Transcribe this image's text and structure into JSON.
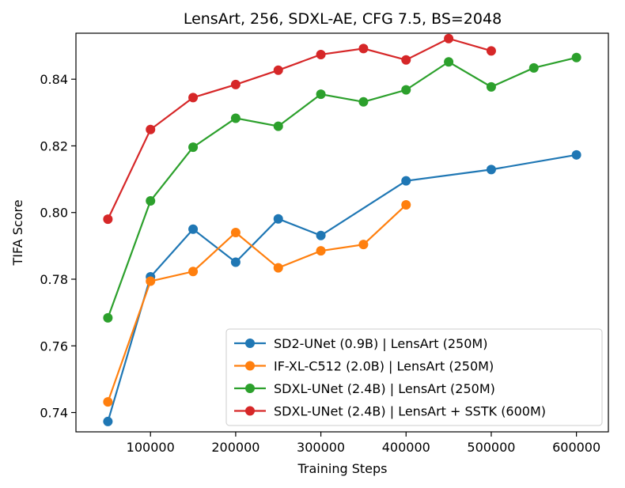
{
  "chart_data": {
    "type": "line",
    "title": "LensArt, 256, SDXL-AE, CFG 7.5, BS=2048",
    "xlabel": "Training Steps",
    "ylabel": "TIFA Score",
    "xlim": [
      12500,
      637500
    ],
    "ylim": [
      0.7342,
      0.8538
    ],
    "xticks": [
      100000,
      200000,
      300000,
      400000,
      500000,
      600000
    ],
    "xtick_labels": [
      "100000",
      "200000",
      "300000",
      "400000",
      "500000",
      "600000"
    ],
    "yticks": [
      0.74,
      0.76,
      0.78,
      0.8,
      0.82,
      0.84
    ],
    "ytick_labels": [
      "0.74",
      "0.76",
      "0.78",
      "0.80",
      "0.82",
      "0.84"
    ],
    "grid": false,
    "legend_position": "lower-right",
    "series": [
      {
        "name": "SD2-UNet (0.9B) | LensArt (250M)",
        "color": "#1f77b4",
        "x": [
          50000,
          100000,
          150000,
          200000,
          250000,
          300000,
          400000,
          500000,
          600000
        ],
        "y": [
          0.7373,
          0.7807,
          0.795,
          0.7851,
          0.7981,
          0.7931,
          0.8095,
          0.8129,
          0.8173
        ]
      },
      {
        "name": "IF-XL-C512 (2.0B) | LensArt (250M)",
        "color": "#ff7f0e",
        "x": [
          50000,
          100000,
          150000,
          200000,
          250000,
          300000,
          350000,
          400000
        ],
        "y": [
          0.7432,
          0.7794,
          0.7823,
          0.794,
          0.7834,
          0.7885,
          0.7904,
          0.8023
        ]
      },
      {
        "name": "SDXL-UNet (2.4B) | LensArt (250M)",
        "color": "#2ca02c",
        "x": [
          50000,
          100000,
          150000,
          200000,
          250000,
          300000,
          350000,
          400000,
          450000,
          500000,
          550000,
          600000
        ],
        "y": [
          0.7684,
          0.8035,
          0.8196,
          0.8283,
          0.8259,
          0.8355,
          0.8332,
          0.8368,
          0.8452,
          0.8377,
          0.8434,
          0.8465
        ]
      },
      {
        "name": "SDXL-UNet (2.4B) | LensArt + SSTK (600M)",
        "color": "#d62728",
        "x": [
          50000,
          100000,
          150000,
          200000,
          250000,
          300000,
          350000,
          400000,
          450000,
          500000
        ],
        "y": [
          0.798,
          0.8249,
          0.8345,
          0.8384,
          0.8427,
          0.8474,
          0.8492,
          0.8458,
          0.8522,
          0.8485
        ]
      }
    ]
  }
}
